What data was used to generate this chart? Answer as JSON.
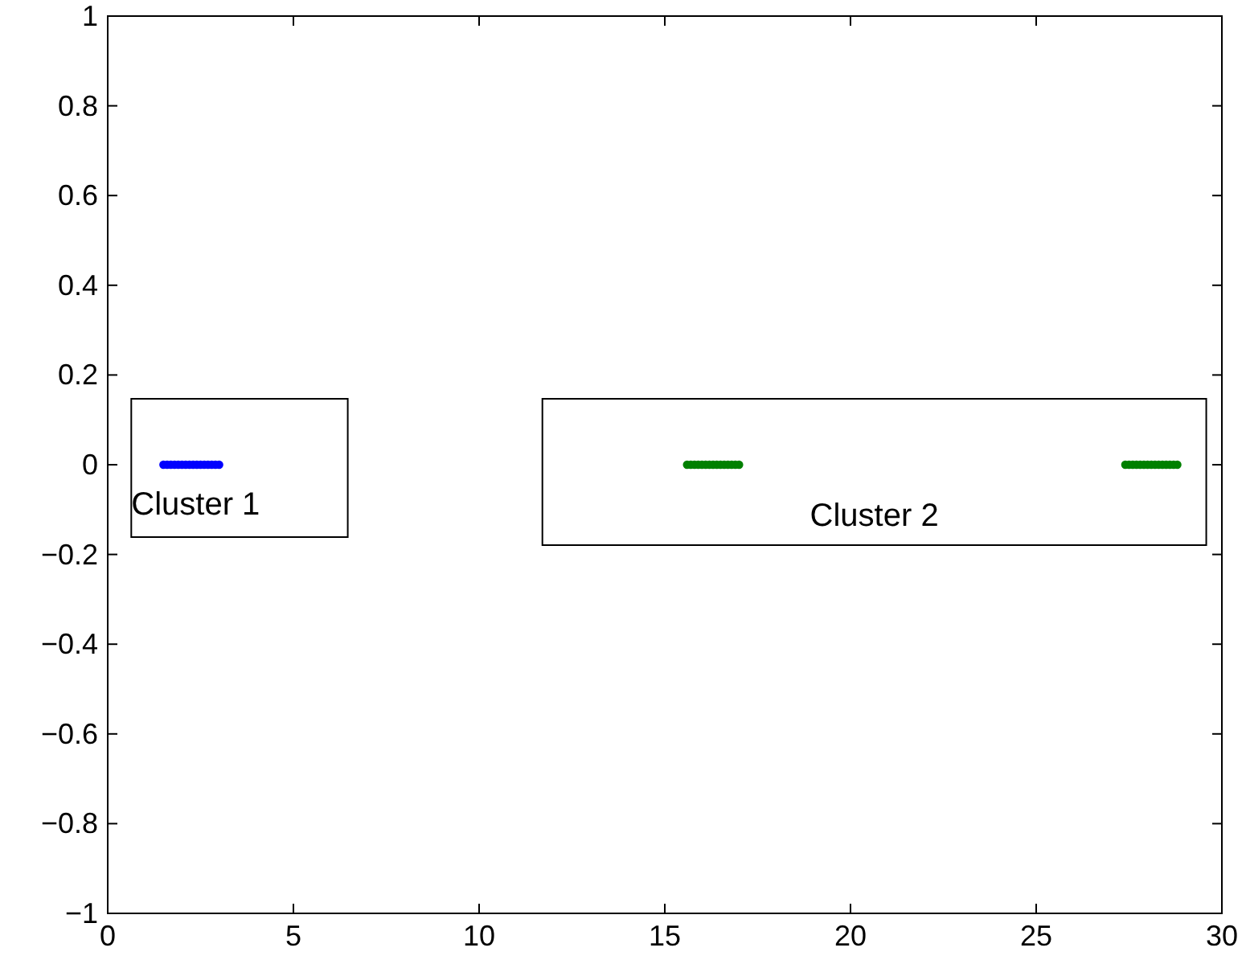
{
  "chart_data": {
    "type": "scatter",
    "marker": "circle",
    "xlim": [
      0,
      30
    ],
    "ylim": [
      -1,
      1
    ],
    "xticks": [
      0,
      5,
      10,
      15,
      20,
      25,
      30
    ],
    "yticks": [
      -1,
      -0.8,
      -0.6,
      -0.4,
      -0.2,
      0,
      0.2,
      0.4,
      0.6,
      0.8,
      1
    ],
    "grid": false,
    "series": [
      {
        "color": "#0000ff",
        "x": [
          1.5,
          1.6,
          1.7,
          1.8,
          1.9,
          2.0,
          2.1,
          2.2,
          2.3,
          2.4,
          2.5,
          2.6,
          2.7,
          2.8,
          2.9,
          3.0
        ],
        "values": [
          0,
          0,
          0,
          0,
          0,
          0,
          0,
          0,
          0,
          0,
          0,
          0,
          0,
          0,
          0,
          0
        ]
      },
      {
        "color": "#008000",
        "x": [
          15.6,
          15.7,
          15.8,
          15.9,
          16.0,
          16.1,
          16.2,
          16.3,
          16.4,
          16.5,
          16.6,
          16.7,
          16.8,
          16.9,
          17.0,
          27.4,
          27.5,
          27.6,
          27.7,
          27.8,
          27.9,
          28.0,
          28.1,
          28.2,
          28.3,
          28.4,
          28.5,
          28.6,
          28.7,
          28.8
        ],
        "values": [
          0,
          0,
          0,
          0,
          0,
          0,
          0,
          0,
          0,
          0,
          0,
          0,
          0,
          0,
          0,
          0,
          0,
          0,
          0,
          0,
          0,
          0,
          0,
          0,
          0,
          0,
          0,
          0,
          0,
          0
        ]
      }
    ],
    "annotations": [
      "Cluster 1",
      "Cluster 2"
    ]
  }
}
